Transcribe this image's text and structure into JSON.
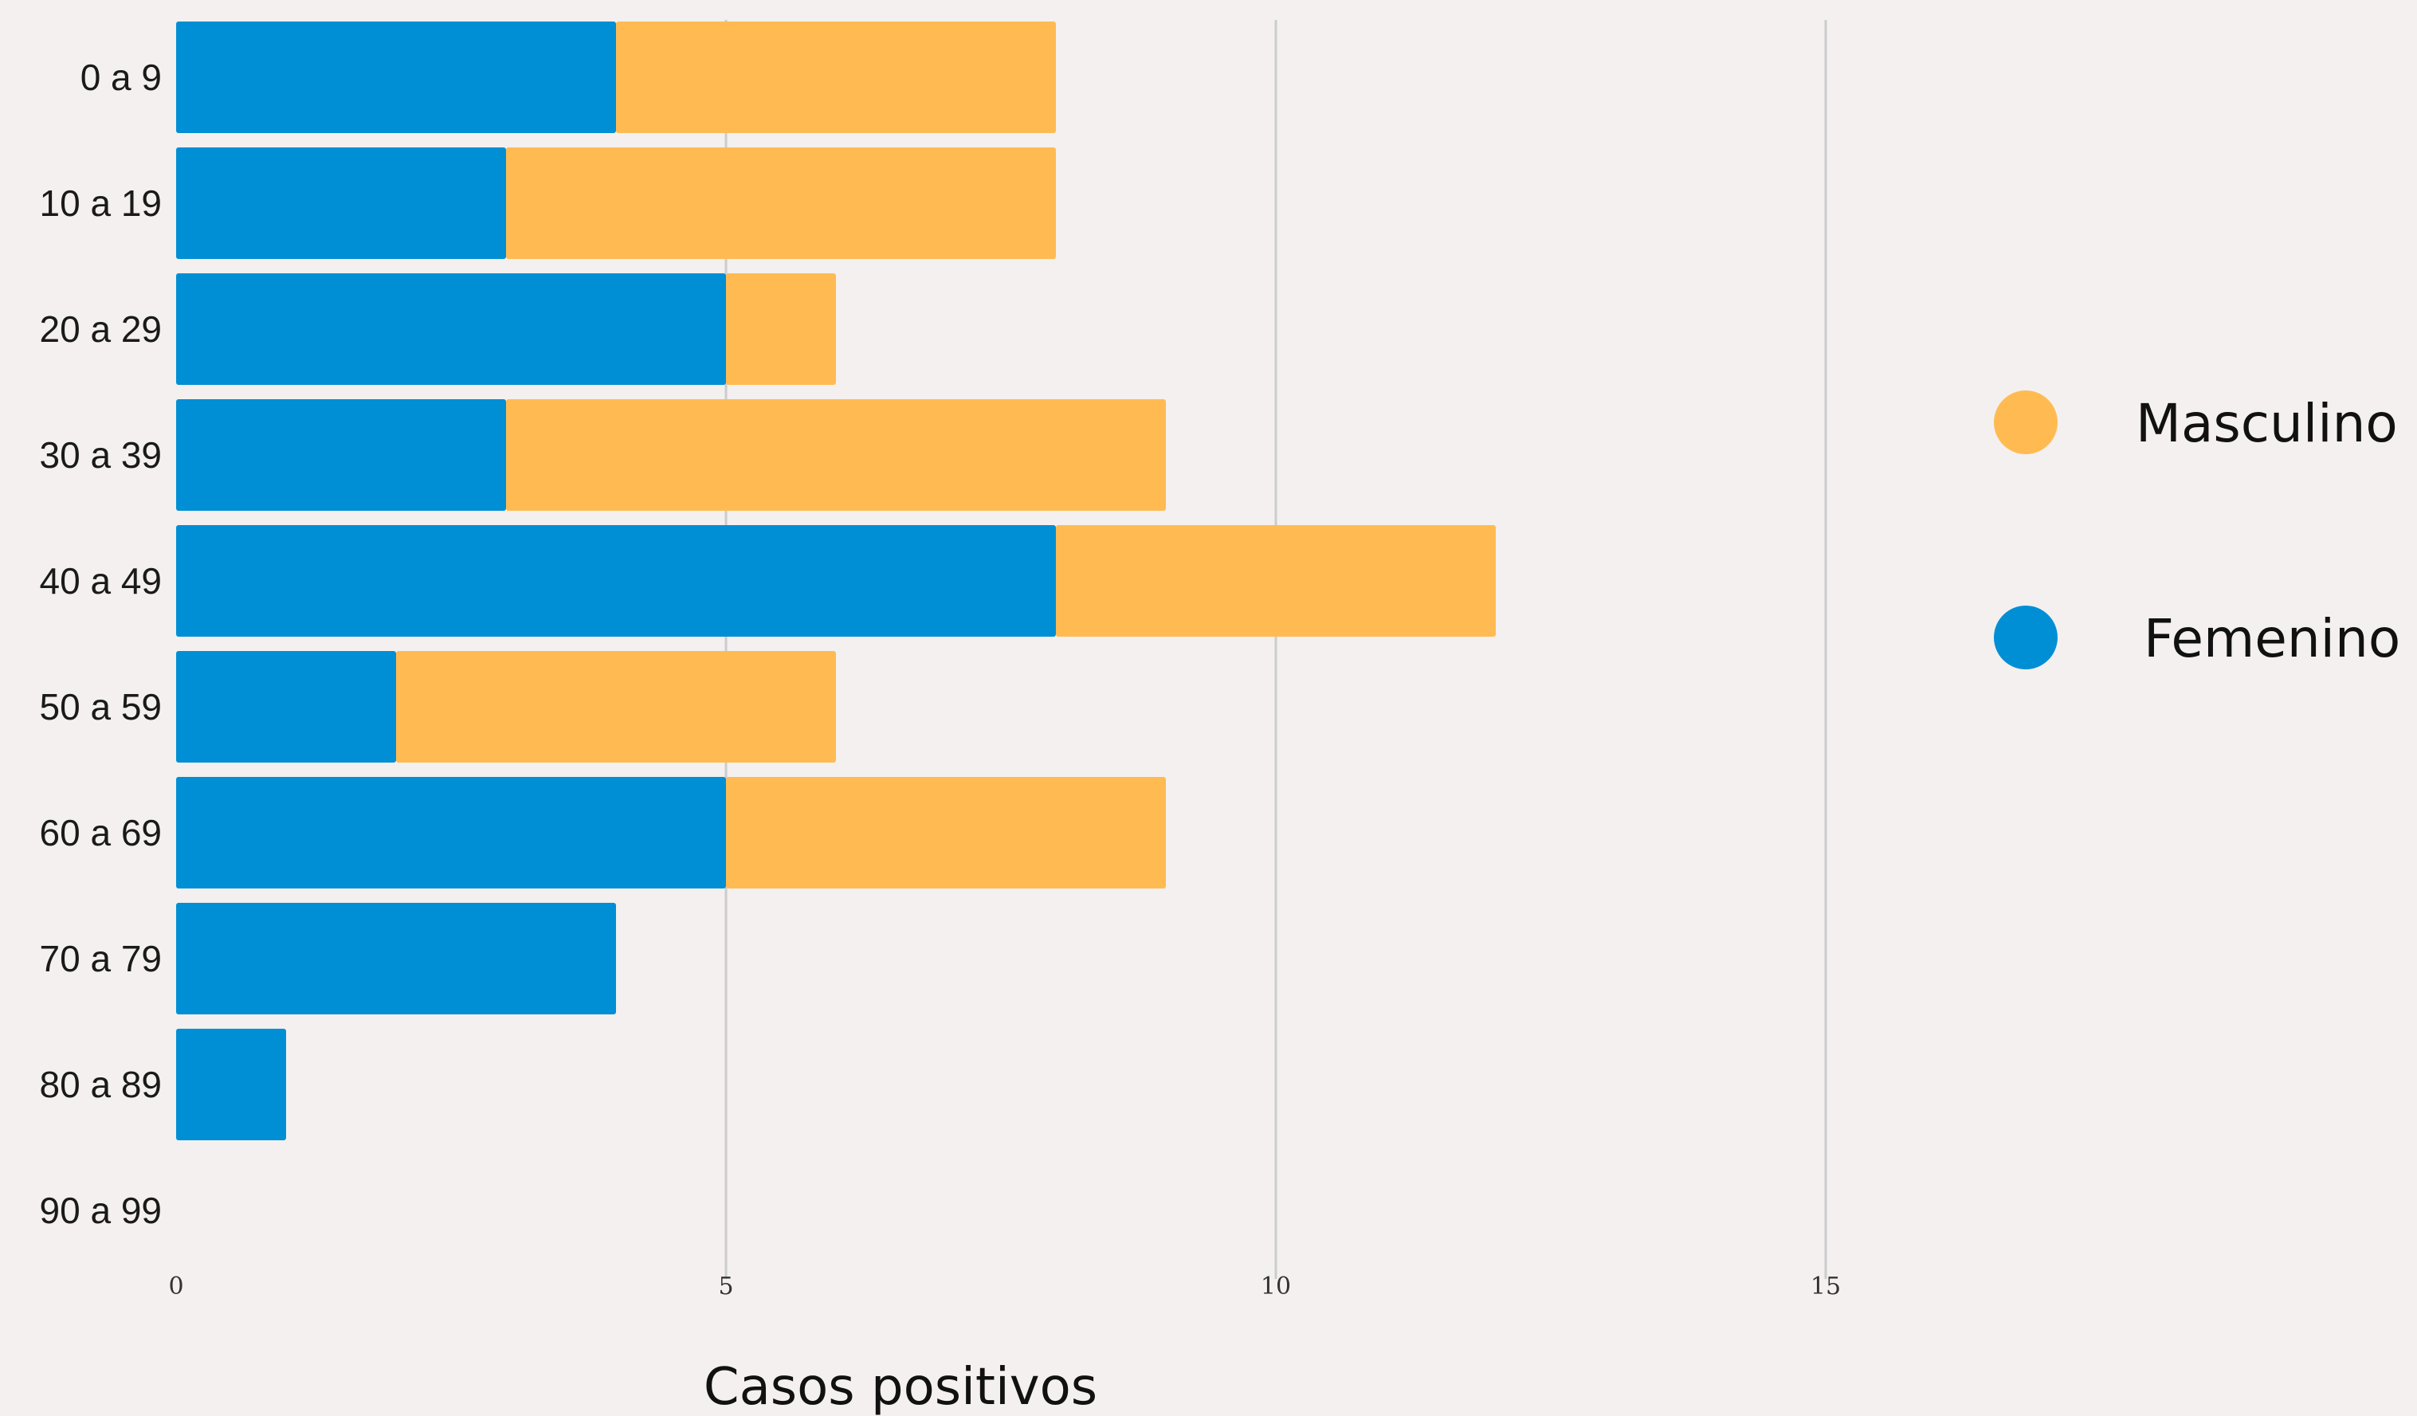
{
  "chart_data": {
    "type": "bar",
    "orientation": "horizontal",
    "stacked": true,
    "categories": [
      "0 a 9",
      "10 a 19",
      "20 a 29",
      "30 a 39",
      "40 a 49",
      "50 a 59",
      "60 a 69",
      "70 a 79",
      "80 a 89",
      "90 a 99"
    ],
    "series": [
      {
        "name": "Femenino",
        "color": "#008fd5",
        "values": [
          4,
          3,
          5,
          3,
          8,
          2,
          5,
          4,
          1,
          0
        ]
      },
      {
        "name": "Masculino",
        "color": "#ffbb52",
        "values": [
          4,
          5,
          1,
          6,
          4,
          4,
          4,
          0,
          0,
          0
        ]
      }
    ],
    "xlabel": "Casos positivos",
    "ylabel": "",
    "xlim": [
      0,
      20
    ],
    "xticks": [
      0,
      5,
      10,
      15
    ],
    "grid": "vertical",
    "legend": {
      "placement": "right",
      "order": [
        "Masculino",
        "Femenino"
      ]
    }
  }
}
